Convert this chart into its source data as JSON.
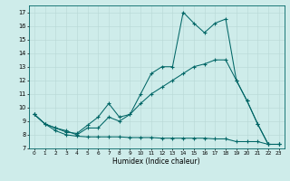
{
  "xlabel": "Humidex (Indice chaleur)",
  "xlim": [
    -0.5,
    23.5
  ],
  "ylim": [
    7.0,
    17.5
  ],
  "yticks": [
    7,
    8,
    9,
    10,
    11,
    12,
    13,
    14,
    15,
    16,
    17
  ],
  "xticks": [
    0,
    1,
    2,
    3,
    4,
    5,
    6,
    7,
    8,
    9,
    10,
    11,
    12,
    13,
    14,
    15,
    16,
    17,
    18,
    19,
    20,
    21,
    22,
    23
  ],
  "bg_color": "#ceecea",
  "line_color": "#006666",
  "grid_color": "#b8d8d5",
  "line_upper_y": [
    9.5,
    8.8,
    8.5,
    8.2,
    8.1,
    8.7,
    9.3,
    10.3,
    9.3,
    9.5,
    11.0,
    12.5,
    13.0,
    13.0,
    17.0,
    16.2,
    15.5,
    16.2,
    16.5,
    12.0,
    10.5,
    8.8,
    7.3,
    7.3
  ],
  "line_mid_y": [
    9.5,
    8.8,
    8.5,
    8.3,
    8.0,
    8.5,
    8.5,
    9.3,
    9.0,
    9.5,
    10.3,
    11.0,
    11.5,
    12.0,
    12.5,
    13.0,
    13.2,
    13.5,
    13.5,
    12.0,
    10.5,
    8.8,
    7.3,
    7.3
  ],
  "line_low_y": [
    9.5,
    8.8,
    8.3,
    8.0,
    7.9,
    7.85,
    7.85,
    7.85,
    7.85,
    7.8,
    7.8,
    7.8,
    7.75,
    7.75,
    7.75,
    7.75,
    7.75,
    7.7,
    7.7,
    7.5,
    7.5,
    7.5,
    7.3,
    7.3
  ]
}
